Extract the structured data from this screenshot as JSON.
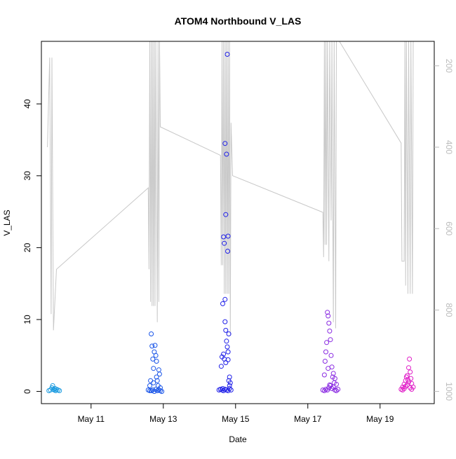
{
  "chart_data": {
    "type": "scatter",
    "title": "ATOM4 Northbound V_LAS",
    "xlabel": "Date",
    "ylabel": "V_LAS",
    "xlim": [
      "2019-05-09T15:00",
      "2019-05-20T12:00"
    ],
    "ylim": [
      -1.7,
      48.7
    ],
    "x_ticks": [
      {
        "value": "2019-05-11",
        "label": "May 11"
      },
      {
        "value": "2019-05-13",
        "label": "May 13"
      },
      {
        "value": "2019-05-15",
        "label": "May 15"
      },
      {
        "value": "2019-05-17",
        "label": "May 17"
      },
      {
        "value": "2019-05-19",
        "label": "May 19"
      }
    ],
    "y_ticks": [
      0,
      10,
      20,
      30,
      40
    ],
    "right_axis": {
      "ylim": [
        1030,
        140
      ],
      "ticks": [
        200,
        400,
        600,
        800,
        1000
      ],
      "color": "#bbbbbb"
    },
    "grid": false,
    "series": [
      {
        "color": "#1a9be0",
        "marker": "open-circle",
        "points": [
          [
            "2019-05-09T20:00",
            0.1
          ],
          [
            "2019-05-09T21:00",
            0.2
          ],
          [
            "2019-05-09T22:00",
            0.5
          ],
          [
            "2019-05-09T22:30",
            0.8
          ],
          [
            "2019-05-09T23:00",
            0.3
          ],
          [
            "2019-05-09T23:30",
            0.2
          ],
          [
            "2019-05-10T00:00",
            0.4
          ],
          [
            "2019-05-10T00:30",
            0.1
          ],
          [
            "2019-05-10T01:00",
            0.3
          ],
          [
            "2019-05-10T02:00",
            0.2
          ],
          [
            "2019-05-10T03:00",
            0.1
          ]
        ]
      },
      {
        "color": "#1a55e8",
        "marker": "open-circle",
        "points": [
          [
            "2019-05-12T14:00",
            0.2
          ],
          [
            "2019-05-12T15:00",
            0.8
          ],
          [
            "2019-05-12T15:30",
            1.5
          ],
          [
            "2019-05-12T16:00",
            8.0
          ],
          [
            "2019-05-12T16:30",
            6.3
          ],
          [
            "2019-05-12T17:00",
            4.5
          ],
          [
            "2019-05-12T17:30",
            3.2
          ],
          [
            "2019-05-12T18:00",
            5.5
          ],
          [
            "2019-05-12T18:30",
            6.4
          ],
          [
            "2019-05-12T19:00",
            5.0
          ],
          [
            "2019-05-12T19:30",
            2.0
          ],
          [
            "2019-05-12T20:00",
            1.5
          ],
          [
            "2019-05-12T21:00",
            3.0
          ],
          [
            "2019-05-12T21:30",
            2.4
          ],
          [
            "2019-05-12T22:00",
            0.5
          ],
          [
            "2019-05-12T16:00",
            0.1
          ],
          [
            "2019-05-12T17:00",
            0.2
          ],
          [
            "2019-05-12T18:00",
            0.0
          ],
          [
            "2019-05-12T19:00",
            0.3
          ],
          [
            "2019-05-12T20:00",
            0.1
          ],
          [
            "2019-05-12T21:00",
            0.2
          ],
          [
            "2019-05-12T22:00",
            0.1
          ],
          [
            "2019-05-12T23:00",
            0.0
          ],
          [
            "2019-05-12T17:30",
            1.2
          ],
          [
            "2019-05-12T20:30",
            0.8
          ],
          [
            "2019-05-12T19:30",
            4.2
          ],
          [
            "2019-05-12T15:00",
            0.1
          ]
        ]
      },
      {
        "color": "#2020e8",
        "marker": "open-circle",
        "points": [
          [
            "2019-05-14T13:00",
            0.2
          ],
          [
            "2019-05-14T14:00",
            0.3
          ],
          [
            "2019-05-14T14:30",
            3.5
          ],
          [
            "2019-05-14T15:00",
            4.8
          ],
          [
            "2019-05-14T15:30",
            12.2
          ],
          [
            "2019-05-14T16:00",
            21.5
          ],
          [
            "2019-05-14T16:30",
            20.6
          ],
          [
            "2019-05-14T17:00",
            34.5
          ],
          [
            "2019-05-14T17:30",
            24.6
          ],
          [
            "2019-05-14T18:00",
            33.0
          ],
          [
            "2019-05-14T18:30",
            46.9
          ],
          [
            "2019-05-14T18:45",
            19.5
          ],
          [
            "2019-05-14T17:00",
            12.8
          ],
          [
            "2019-05-14T19:00",
            21.6
          ],
          [
            "2019-05-14T17:00",
            9.7
          ],
          [
            "2019-05-14T17:30",
            8.5
          ],
          [
            "2019-05-14T18:00",
            7.0
          ],
          [
            "2019-05-14T18:30",
            6.2
          ],
          [
            "2019-05-14T19:00",
            5.5
          ],
          [
            "2019-05-14T19:30",
            8.0
          ],
          [
            "2019-05-14T16:00",
            5.2
          ],
          [
            "2019-05-14T16:30",
            4.5
          ],
          [
            "2019-05-14T17:30",
            4.0
          ],
          [
            "2019-05-14T19:00",
            4.4
          ],
          [
            "2019-05-14T20:00",
            2.0
          ],
          [
            "2019-05-14T20:30",
            1.2
          ],
          [
            "2019-05-14T15:00",
            0.2
          ],
          [
            "2019-05-14T16:00",
            0.1
          ],
          [
            "2019-05-14T17:00",
            0.3
          ],
          [
            "2019-05-14T18:00",
            0.2
          ],
          [
            "2019-05-14T19:00",
            0.1
          ],
          [
            "2019-05-14T20:00",
            0.4
          ],
          [
            "2019-05-14T21:00",
            0.2
          ],
          [
            "2019-05-14T15:30",
            0.4
          ],
          [
            "2019-05-14T19:30",
            1.5
          ],
          [
            "2019-05-14T20:00",
            0.8
          ]
        ]
      },
      {
        "color": "#8a2be2",
        "marker": "open-circle",
        "points": [
          [
            "2019-05-17T10:00",
            0.2
          ],
          [
            "2019-05-17T11:00",
            2.3
          ],
          [
            "2019-05-17T11:30",
            4.2
          ],
          [
            "2019-05-17T12:00",
            5.5
          ],
          [
            "2019-05-17T12:30",
            6.8
          ],
          [
            "2019-05-17T13:00",
            11.0
          ],
          [
            "2019-05-17T13:30",
            10.5
          ],
          [
            "2019-05-17T14:00",
            9.5
          ],
          [
            "2019-05-17T14:30",
            8.4
          ],
          [
            "2019-05-17T15:00",
            7.2
          ],
          [
            "2019-05-17T15:30",
            5.0
          ],
          [
            "2019-05-17T16:00",
            3.4
          ],
          [
            "2019-05-17T17:00",
            2.5
          ],
          [
            "2019-05-17T18:00",
            1.8
          ],
          [
            "2019-05-17T19:00",
            1.0
          ],
          [
            "2019-05-17T11:00",
            0.1
          ],
          [
            "2019-05-17T12:00",
            0.3
          ],
          [
            "2019-05-17T13:00",
            0.2
          ],
          [
            "2019-05-17T14:00",
            0.5
          ],
          [
            "2019-05-17T15:00",
            0.8
          ],
          [
            "2019-05-17T16:00",
            0.4
          ],
          [
            "2019-05-17T17:00",
            0.6
          ],
          [
            "2019-05-17T18:00",
            0.2
          ],
          [
            "2019-05-17T19:00",
            0.1
          ],
          [
            "2019-05-17T20:00",
            0.3
          ],
          [
            "2019-05-17T13:30",
            3.2
          ],
          [
            "2019-05-17T16:30",
            2.0
          ],
          [
            "2019-05-17T14:30",
            0.9
          ],
          [
            "2019-05-17T17:30",
            1.2
          ]
        ]
      },
      {
        "color": "#e020c8",
        "marker": "open-circle",
        "points": [
          [
            "2019-05-19T14:00",
            0.3
          ],
          [
            "2019-05-19T15:00",
            0.6
          ],
          [
            "2019-05-19T16:00",
            1.0
          ],
          [
            "2019-05-19T17:00",
            1.5
          ],
          [
            "2019-05-19T18:00",
            2.2
          ],
          [
            "2019-05-19T19:00",
            3.3
          ],
          [
            "2019-05-19T19:30",
            4.5
          ],
          [
            "2019-05-19T20:00",
            2.7
          ],
          [
            "2019-05-19T20:30",
            1.8
          ],
          [
            "2019-05-19T21:00",
            1.1
          ],
          [
            "2019-05-19T15:00",
            0.2
          ],
          [
            "2019-05-19T16:00",
            0.4
          ],
          [
            "2019-05-19T17:00",
            0.7
          ],
          [
            "2019-05-19T18:00",
            0.9
          ],
          [
            "2019-05-19T19:00",
            1.3
          ],
          [
            "2019-05-19T20:00",
            0.5
          ],
          [
            "2019-05-19T21:00",
            0.3
          ],
          [
            "2019-05-19T22:00",
            0.6
          ],
          [
            "2019-05-19T17:30",
            2.0
          ],
          [
            "2019-05-19T18:30",
            1.6
          ]
        ]
      }
    ],
    "overlay_line": {
      "color": "#c8c8c8",
      "axis": "right",
      "points": [
        [
          "2019-05-09T19:00",
          400
        ],
        [
          "2019-05-09T20:30",
          180
        ],
        [
          "2019-05-09T21:30",
          810
        ],
        [
          "2019-05-09T22:00",
          180
        ],
        [
          "2019-05-09T23:00",
          850
        ],
        [
          "2019-05-10T01:00",
          700
        ],
        [
          "2019-05-12T14:00",
          500
        ],
        [
          "2019-05-12T14:30",
          700
        ],
        [
          "2019-05-12T15:00",
          140
        ],
        [
          "2019-05-12T15:30",
          780
        ],
        [
          "2019-05-12T16:00",
          140
        ],
        [
          "2019-05-12T16:30",
          790
        ],
        [
          "2019-05-12T17:00",
          140
        ],
        [
          "2019-05-12T17:30",
          790
        ],
        [
          "2019-05-12T18:00",
          140
        ],
        [
          "2019-05-12T18:30",
          790
        ],
        [
          "2019-05-12T19:00",
          140
        ],
        [
          "2019-05-12T20:00",
          830
        ],
        [
          "2019-05-12T20:30",
          140
        ],
        [
          "2019-05-12T21:00",
          780
        ],
        [
          "2019-05-12T21:30",
          140
        ],
        [
          "2019-05-12T22:00",
          350
        ],
        [
          "2019-05-14T14:00",
          420
        ],
        [
          "2019-05-14T14:30",
          690
        ],
        [
          "2019-05-14T15:00",
          140
        ],
        [
          "2019-05-14T15:30",
          690
        ],
        [
          "2019-05-14T16:00",
          140
        ],
        [
          "2019-05-14T16:30",
          760
        ],
        [
          "2019-05-14T17:00",
          140
        ],
        [
          "2019-05-14T17:30",
          760
        ],
        [
          "2019-05-14T18:00",
          140
        ],
        [
          "2019-05-14T18:30",
          760
        ],
        [
          "2019-05-14T19:00",
          140
        ],
        [
          "2019-05-14T19:30",
          760
        ],
        [
          "2019-05-14T20:00",
          140
        ],
        [
          "2019-05-14T20:30",
          860
        ],
        [
          "2019-05-14T21:00",
          340
        ],
        [
          "2019-05-14T22:00",
          470
        ],
        [
          "2019-05-17T10:00",
          560
        ],
        [
          "2019-05-17T10:30",
          670
        ],
        [
          "2019-05-17T11:00",
          140
        ],
        [
          "2019-05-17T11:30",
          640
        ],
        [
          "2019-05-17T12:00",
          140
        ],
        [
          "2019-05-17T12:30",
          640
        ],
        [
          "2019-05-17T13:00",
          140
        ],
        [
          "2019-05-17T14:00",
          680
        ],
        [
          "2019-05-17T14:30",
          140
        ],
        [
          "2019-05-17T15:30",
          580
        ],
        [
          "2019-05-17T16:00",
          140
        ],
        [
          "2019-05-17T17:00",
          830
        ],
        [
          "2019-05-17T17:30",
          140
        ],
        [
          "2019-05-17T18:30",
          845
        ],
        [
          "2019-05-17T19:00",
          140
        ],
        [
          "2019-05-17T21:00",
          140
        ],
        [
          "2019-05-19T14:00",
          390
        ],
        [
          "2019-05-19T14:30",
          680
        ],
        [
          "2019-05-19T16:00",
          680
        ],
        [
          "2019-05-19T16:30",
          140
        ],
        [
          "2019-05-19T17:00",
          740
        ],
        [
          "2019-05-19T17:30",
          140
        ],
        [
          "2019-05-19T18:30",
          760
        ],
        [
          "2019-05-19T19:00",
          140
        ],
        [
          "2019-05-19T20:00",
          760
        ],
        [
          "2019-05-19T20:30",
          140
        ],
        [
          "2019-05-19T21:30",
          760
        ],
        [
          "2019-05-19T22:00",
          140
        ]
      ]
    }
  }
}
